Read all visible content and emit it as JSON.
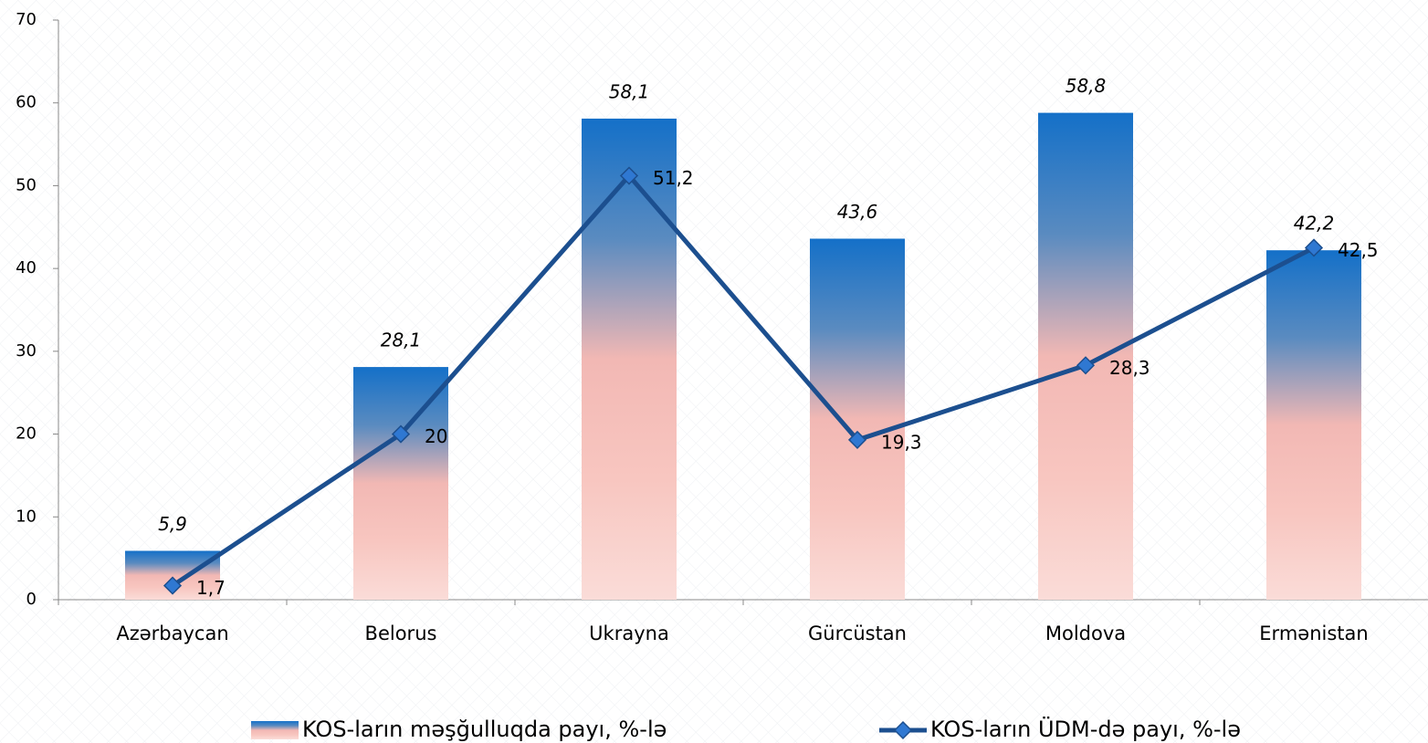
{
  "chart_data": {
    "type": "bar",
    "categories": [
      "Azərbaycan",
      "Belorus",
      "Ukrayna",
      "Gürcüstan",
      "Moldova",
      "Ermənistan"
    ],
    "series": [
      {
        "name": "KOS-ların məşğulluqda payı, %-lə",
        "type": "bar",
        "color": "#1a6fc4",
        "values": [
          5.9,
          28.1,
          58.1,
          43.6,
          58.8,
          42.2
        ],
        "value_labels": [
          "5,9",
          "28,1",
          "58,1",
          "43,6",
          "58,8",
          "42,2"
        ]
      },
      {
        "name": "KOS-ların ÜDM-də payı, %-lə",
        "type": "line",
        "color": "#1c4f8f",
        "values": [
          1.7,
          20,
          51.2,
          19.3,
          28.3,
          42.5
        ],
        "value_labels": [
          "1,7",
          "20",
          "51,2",
          "19,3",
          "28,3",
          "42,5"
        ]
      }
    ],
    "ylim": [
      0,
      70
    ],
    "yticks": [
      0,
      10,
      20,
      30,
      40,
      50,
      60,
      70
    ],
    "grid": false,
    "legend": "bottom"
  }
}
